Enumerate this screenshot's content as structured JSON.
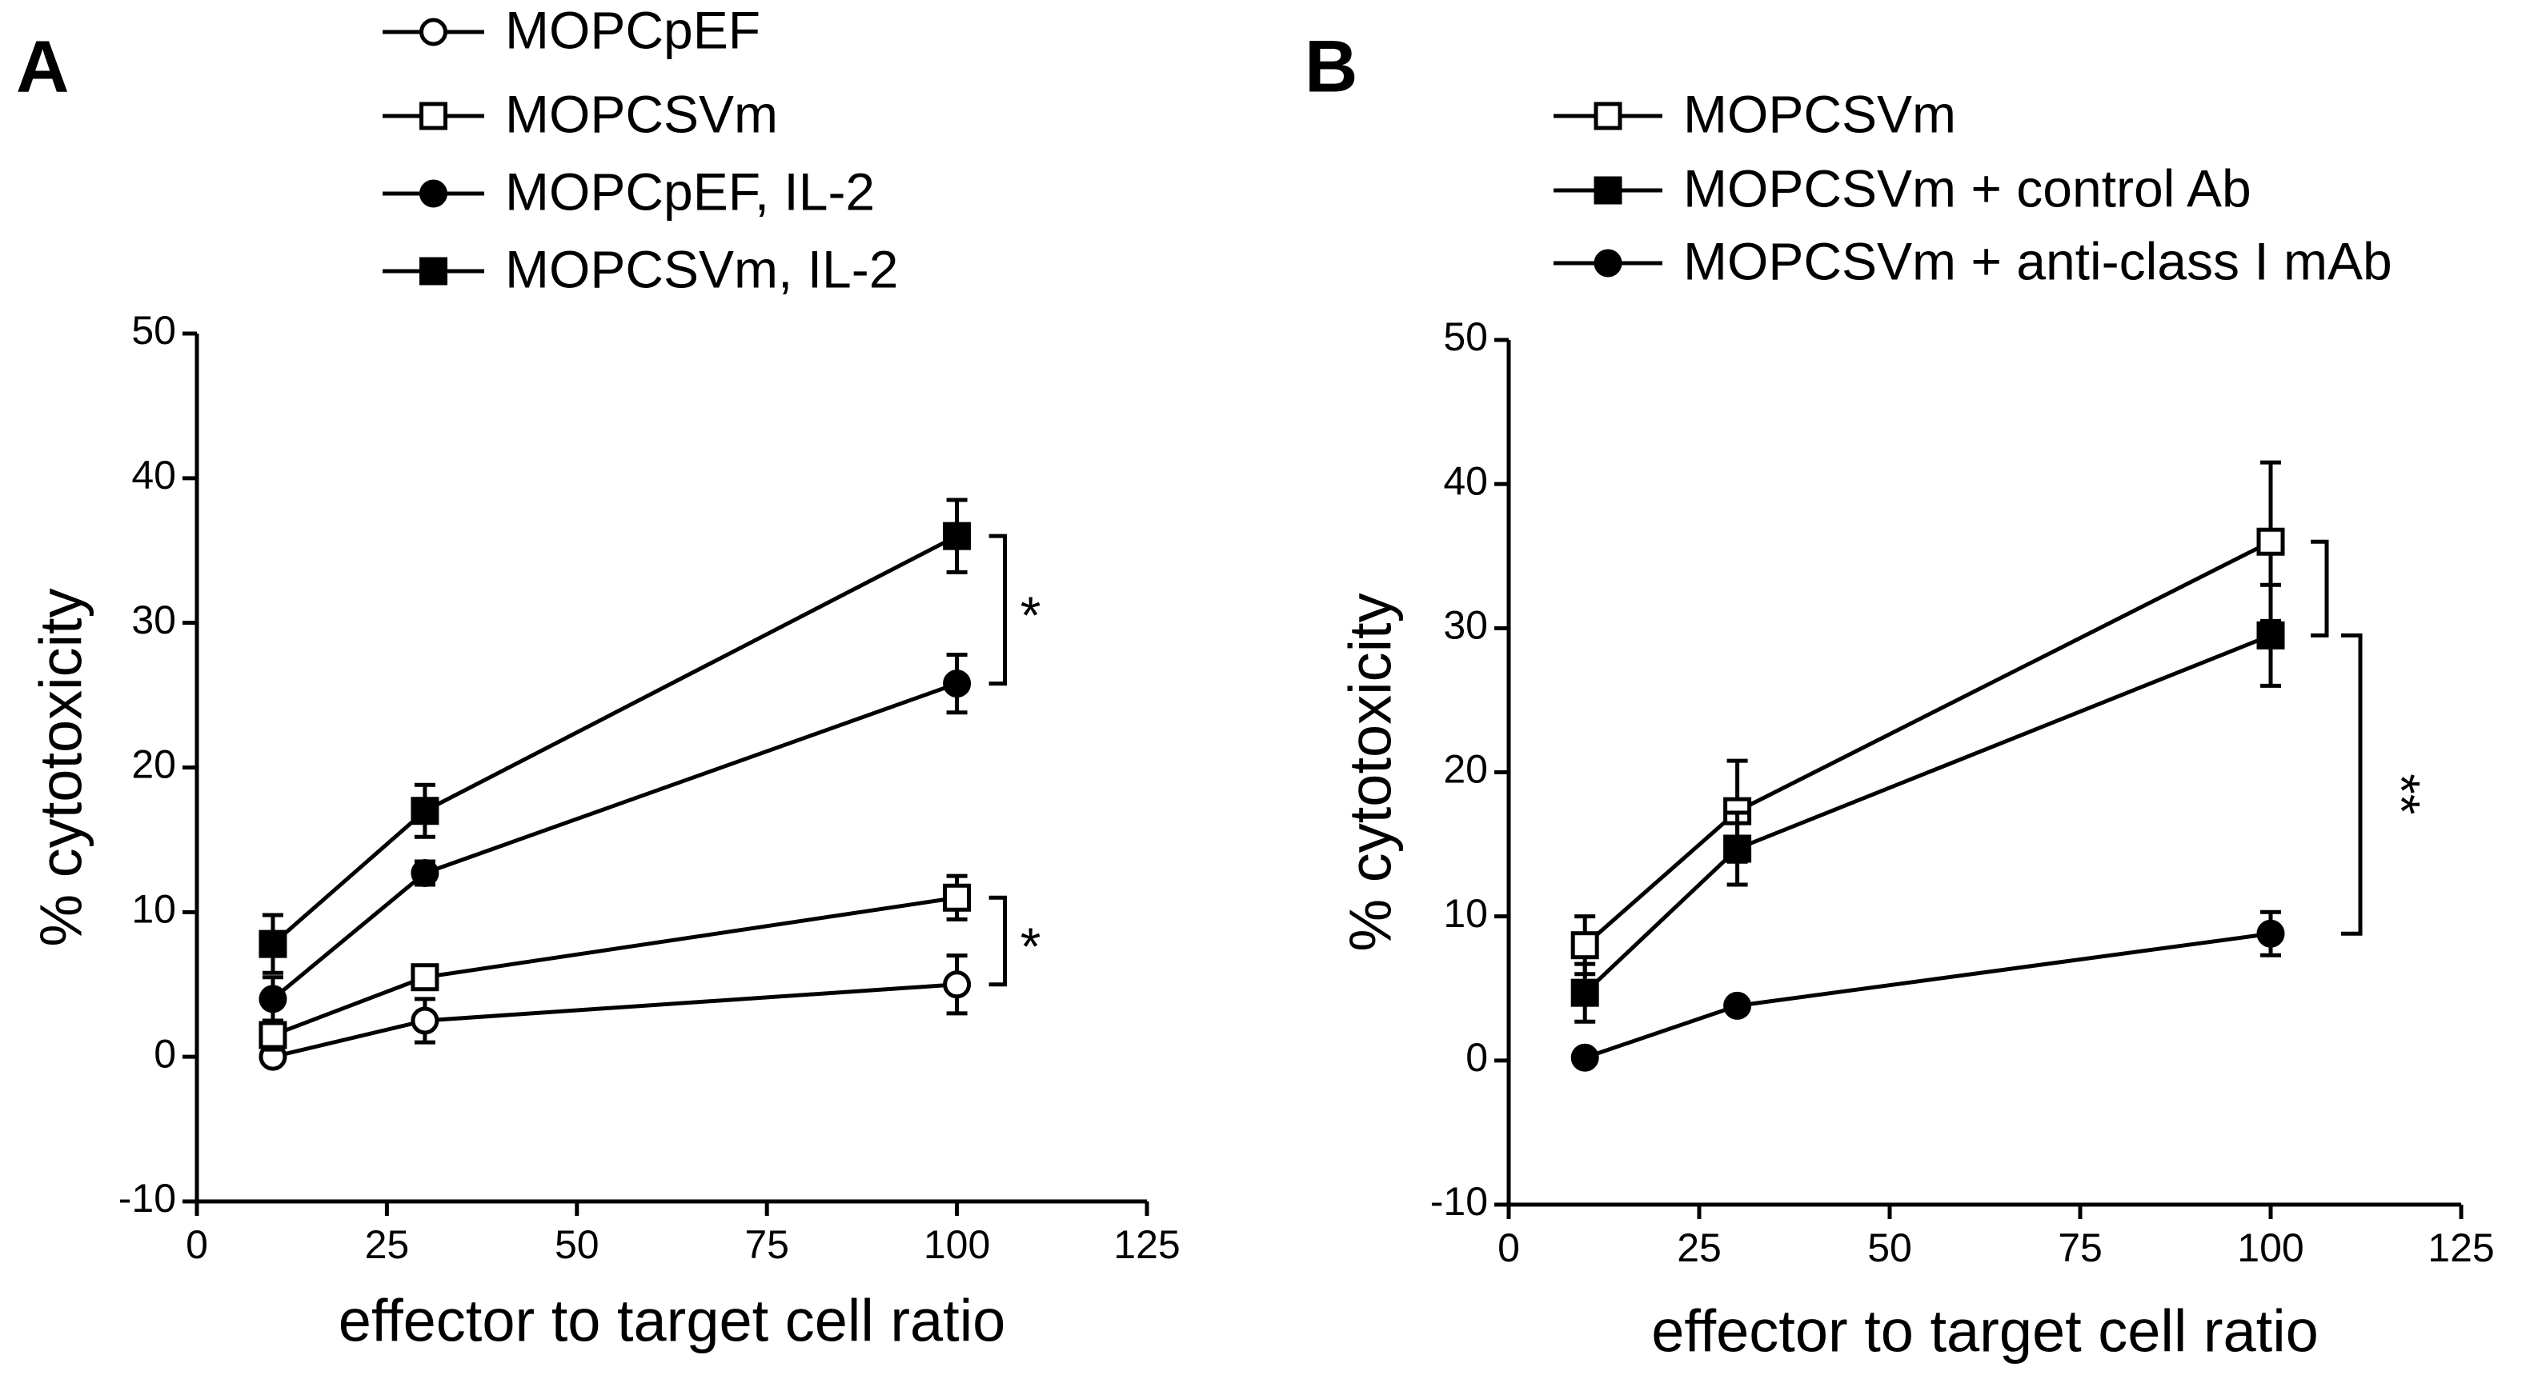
{
  "chart_data": [
    {
      "type": "line",
      "panel": "A",
      "xlabel": "effector to target cell ratio",
      "ylabel": "% cytotoxicity",
      "x": [
        10,
        30,
        100
      ],
      "xlim": [
        0,
        125
      ],
      "xticks": [
        0,
        25,
        50,
        75,
        100,
        125
      ],
      "ylim": [
        -10,
        50
      ],
      "yticks": [
        -10,
        0,
        10,
        20,
        30,
        40,
        50
      ],
      "series": [
        {
          "name": "MOPCpEF",
          "color": "#000000",
          "marker": "circle",
          "filled": false,
          "values": [
            0,
            2.5,
            5
          ],
          "errors": [
            0.4,
            1.5,
            2
          ]
        },
        {
          "name": "MOPCSVm",
          "color": "#000000",
          "marker": "square",
          "filled": false,
          "values": [
            1.5,
            5.5,
            11
          ],
          "errors": [
            1,
            0.8,
            1.5
          ]
        },
        {
          "name": "MOPCpEF, IL-2",
          "color": "#000000",
          "marker": "circle",
          "filled": true,
          "values": [
            4,
            12.7,
            25.8
          ],
          "errors": [
            1.5,
            0.8,
            2
          ]
        },
        {
          "name": "MOPCSVm, IL-2",
          "color": "#000000",
          "marker": "square",
          "filled": true,
          "values": [
            7.8,
            17,
            36
          ],
          "errors": [
            2,
            1.8,
            2.5
          ]
        }
      ],
      "annotations": [
        "*",
        "*"
      ]
    },
    {
      "type": "line",
      "panel": "B",
      "xlabel": "effector to target cell ratio",
      "ylabel": "% cytotoxicity",
      "x": [
        10,
        30,
        100
      ],
      "xlim": [
        0,
        125
      ],
      "xticks": [
        0,
        25,
        50,
        75,
        100,
        125
      ],
      "ylim": [
        -10,
        50
      ],
      "yticks": [
        -10,
        0,
        10,
        20,
        30,
        40,
        50
      ],
      "series": [
        {
          "name": "MOPCSVm",
          "color": "#000000",
          "marker": "square",
          "filled": false,
          "values": [
            8,
            17.3,
            36
          ],
          "errors": [
            2,
            3.5,
            5.5
          ]
        },
        {
          "name": "MOPCSVm + control Ab",
          "color": "#000000",
          "marker": "square",
          "filled": true,
          "values": [
            4.7,
            14.7,
            29.5
          ],
          "errors": [
            2,
            2.5,
            3.5
          ]
        },
        {
          "name": "MOPCSVm + anti-class I mAb",
          "color": "#000000",
          "marker": "circle",
          "filled": true,
          "values": [
            0.2,
            3.8,
            8.8
          ],
          "errors": [
            0.3,
            0.3,
            1.5
          ]
        }
      ],
      "annotations": [
        "**"
      ]
    }
  ]
}
